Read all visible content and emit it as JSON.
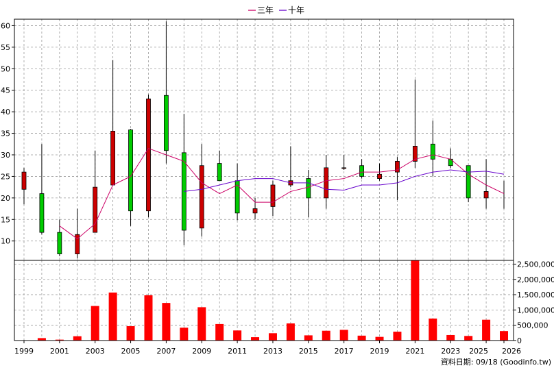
{
  "legend": {
    "items": [
      {
        "label": "三年",
        "color": "#cc0066"
      },
      {
        "label": "十年",
        "color": "#6600cc"
      }
    ],
    "position": "top-center"
  },
  "footer": {
    "note": "資料日期: 09/18  (Goodinfo.tw)"
  },
  "colors": {
    "up": "#cc0000",
    "down": "#00cc00",
    "volume": "#ff0000",
    "grid": "#999999",
    "axis": "#000000"
  },
  "chart_data": [
    {
      "type": "candlestick",
      "title": "",
      "x": [
        1999,
        2000,
        2001,
        2002,
        2003,
        2004,
        2005,
        2006,
        2007,
        2008,
        2009,
        2010,
        2011,
        2012,
        2013,
        2014,
        2015,
        2016,
        2017,
        2018,
        2019,
        2020,
        2021,
        2022,
        2023,
        2024,
        2025,
        2026
      ],
      "x_tick_labels": [
        "1999",
        "2001",
        "2003",
        "2005",
        "2007",
        "2009",
        "2011",
        "2013",
        "2015",
        "2017",
        "2019",
        "2021",
        "2023",
        "2025",
        "2026"
      ],
      "ylim": [
        5.5,
        61.5
      ],
      "y_ticks": [
        10,
        15,
        20,
        25,
        30,
        35,
        40,
        45,
        50,
        55,
        60
      ],
      "grid": true,
      "series": [
        {
          "kind": "ohlc",
          "open": [
            22.0,
            21.0,
            12.0,
            7.0,
            12.0,
            23.0,
            35.8,
            17.0,
            43.8,
            30.5,
            13.0,
            28.0,
            24.0,
            16.5,
            18.0,
            23.0,
            24.5,
            20.0,
            27.0,
            27.5,
            24.5,
            26.0,
            28.5,
            32.5,
            29.0,
            27.5,
            20.0,
            null
          ],
          "high": [
            27.0,
            32.5,
            15.0,
            17.5,
            31.0,
            52.0,
            36.0,
            44.0,
            61.0,
            39.5,
            32.5,
            31.0,
            28.0,
            20.0,
            24.0,
            32.0,
            26.5,
            30.0,
            30.0,
            29.0,
            28.0,
            29.5,
            47.5,
            38.0,
            31.5,
            27.5,
            29.0,
            24.0
          ],
          "low": [
            18.5,
            11.5,
            6.5,
            6.0,
            12.0,
            23.0,
            13.5,
            15.5,
            28.0,
            9.0,
            11.0,
            24.0,
            14.8,
            15.0,
            15.8,
            22.5,
            15.5,
            17.5,
            26.5,
            24.5,
            24.0,
            19.5,
            27.0,
            25.0,
            27.0,
            19.0,
            17.5,
            17.5
          ],
          "close": [
            26.0,
            12.0,
            7.0,
            11.5,
            22.5,
            35.5,
            17.0,
            43.0,
            31.0,
            12.5,
            27.5,
            24.0,
            16.5,
            17.5,
            23.0,
            24.0,
            20.0,
            27.0,
            27.0,
            25.0,
            25.5,
            28.5,
            32.0,
            29.0,
            27.5,
            20.0,
            21.5,
            null
          ]
        },
        {
          "name": "三年",
          "kind": "line",
          "color": "#cc0066",
          "x": [
            2001,
            2002,
            2003,
            2004,
            2005,
            2006,
            2007,
            2008,
            2009,
            2010,
            2011,
            2012,
            2013,
            2014,
            2015,
            2016,
            2017,
            2018,
            2019,
            2020,
            2021,
            2022,
            2023,
            2024,
            2025,
            2026
          ],
          "values": [
            13.5,
            10.5,
            14.0,
            23.0,
            25.0,
            31.5,
            30.0,
            28.5,
            23.5,
            21.0,
            23.0,
            19.0,
            19.0,
            21.5,
            22.5,
            24.0,
            24.5,
            26.0,
            26.0,
            26.5,
            29.0,
            30.0,
            29.0,
            25.5,
            23.0,
            21.0
          ]
        },
        {
          "name": "十年",
          "kind": "line",
          "color": "#6600cc",
          "x": [
            2008,
            2009,
            2010,
            2011,
            2012,
            2013,
            2014,
            2015,
            2016,
            2017,
            2018,
            2019,
            2020,
            2021,
            2022,
            2023,
            2024,
            2025,
            2026
          ],
          "values": [
            21.5,
            22.0,
            23.0,
            24.0,
            24.5,
            24.5,
            23.5,
            23.5,
            22.0,
            21.8,
            23.0,
            23.0,
            23.5,
            25.0,
            26.0,
            26.5,
            26.0,
            26.2,
            25.5
          ]
        }
      ]
    },
    {
      "type": "bar",
      "title": "",
      "categories": [
        1999,
        2000,
        2001,
        2002,
        2003,
        2004,
        2005,
        2006,
        2007,
        2008,
        2009,
        2010,
        2011,
        2012,
        2013,
        2014,
        2015,
        2016,
        2017,
        2018,
        2019,
        2020,
        2021,
        2022,
        2023,
        2024,
        2025,
        2026
      ],
      "values": [
        0,
        80000,
        30000,
        140000,
        1130000,
        1570000,
        470000,
        1480000,
        1230000,
        420000,
        1090000,
        540000,
        330000,
        110000,
        240000,
        560000,
        170000,
        320000,
        350000,
        160000,
        120000,
        290000,
        2630000,
        720000,
        180000,
        150000,
        680000,
        310000
      ],
      "ylim": [
        0,
        2600000
      ],
      "y_tick_labels": [
        "0",
        "500,000",
        "1,000,000",
        "1,500,000",
        "2,000,000",
        "2,500,000"
      ],
      "y_ticks": [
        0,
        500000,
        1000000,
        1500000,
        2000000,
        2500000
      ],
      "grid": true
    }
  ]
}
